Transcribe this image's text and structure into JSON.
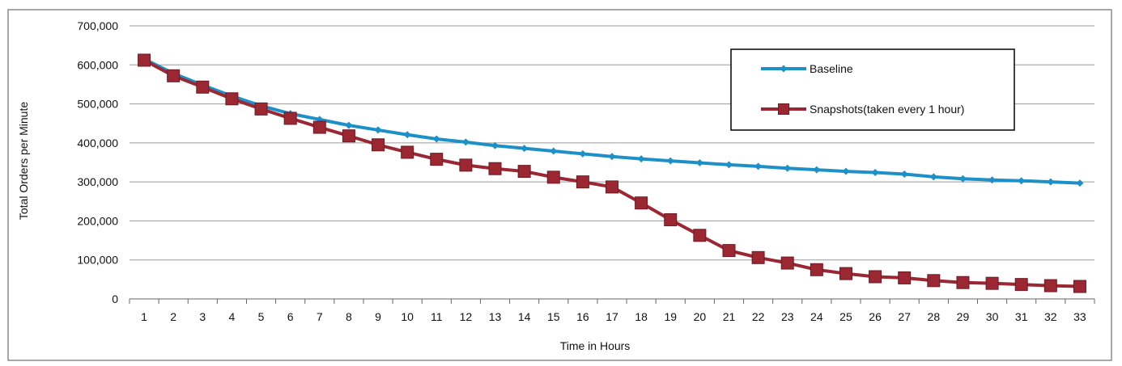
{
  "chart_data": {
    "type": "line",
    "title": "",
    "xlabel": "Time in Hours",
    "ylabel": "Total Orders per Minute",
    "x": [
      1,
      2,
      3,
      4,
      5,
      6,
      7,
      8,
      9,
      10,
      11,
      12,
      13,
      14,
      15,
      16,
      17,
      18,
      19,
      20,
      21,
      22,
      23,
      24,
      25,
      26,
      27,
      28,
      29,
      30,
      31,
      32,
      33
    ],
    "ylim": [
      0,
      700000
    ],
    "yticks": [
      0,
      100000,
      200000,
      300000,
      400000,
      500000,
      600000,
      700000
    ],
    "ytick_labels": [
      "0",
      "100,000",
      "200,000",
      "300,000",
      "400,000",
      "500,000",
      "600,000",
      "700,000"
    ],
    "grid": "horizontal",
    "legend_position": "top-right",
    "series": [
      {
        "name": "Baseline",
        "color": "#1e90c8",
        "marker": "diamond",
        "values": [
          615000,
          578000,
          548000,
          520000,
          495000,
          475000,
          460000,
          445000,
          433000,
          421000,
          410000,
          402000,
          393000,
          386000,
          379000,
          372000,
          365000,
          359000,
          354000,
          349000,
          344000,
          340000,
          335000,
          331000,
          327000,
          324000,
          320000,
          313000,
          308000,
          305000,
          303000,
          300000,
          297000
        ]
      },
      {
        "name": "Snapshots(taken every 1 hour)",
        "color": "#9b2733",
        "marker": "square",
        "values": [
          612000,
          572000,
          543000,
          513000,
          487000,
          463000,
          440000,
          418000,
          395000,
          376000,
          358000,
          343000,
          334000,
          327000,
          312000,
          300000,
          287000,
          246000,
          203000,
          163000,
          124000,
          106000,
          92000,
          75000,
          65000,
          57000,
          54000,
          47000,
          42000,
          40000,
          37000,
          34000,
          32000
        ]
      }
    ]
  }
}
